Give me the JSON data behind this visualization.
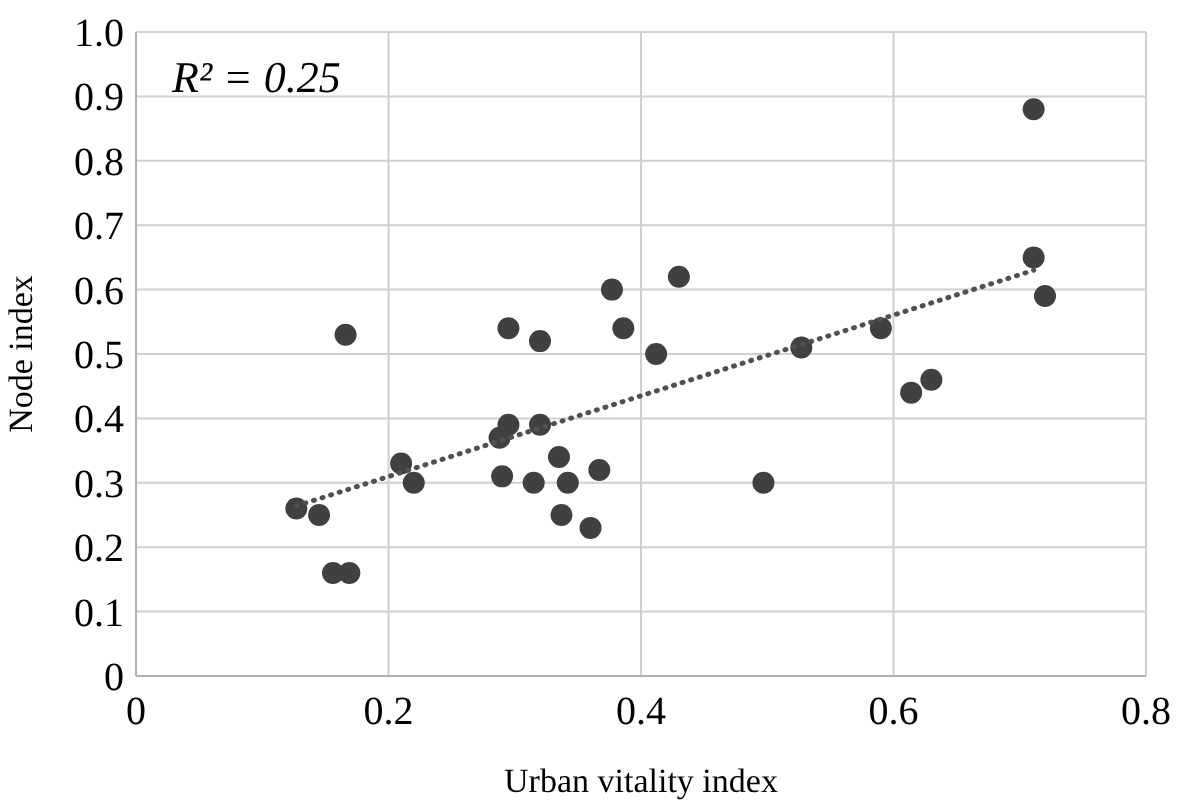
{
  "chart_data": {
    "type": "scatter",
    "xlabel": "Urban vitality index",
    "ylabel": "Node index",
    "annotations": [
      "R² = 0.25"
    ],
    "xlim": [
      0,
      0.8
    ],
    "xticks": [
      {
        "value": 0,
        "label": "0"
      },
      0.2,
      0.4,
      0.6,
      0.8
    ],
    "ylim": [
      0,
      1.0
    ],
    "yticks": [
      {
        "value": 0,
        "label": "0"
      },
      0.1,
      0.2,
      0.3,
      0.4,
      0.5,
      0.6,
      0.7,
      0.8,
      0.9,
      {
        "value": 1,
        "label": "1.0"
      }
    ],
    "grid": true,
    "marker": "circle",
    "series": [
      {
        "color": "#404040",
        "x": [
          0.127,
          0.145,
          0.166,
          0.156,
          0.169,
          0.21,
          0.22,
          0.29,
          0.288,
          0.295,
          0.295,
          0.315,
          0.32,
          0.32,
          0.335,
          0.337,
          0.342,
          0.36,
          0.367,
          0.377,
          0.386,
          0.412,
          0.43,
          0.497,
          0.527,
          0.59,
          0.614,
          0.63,
          0.711,
          0.72,
          0.711
        ],
        "values": [
          0.26,
          0.25,
          0.53,
          0.16,
          0.16,
          0.33,
          0.3,
          0.31,
          0.37,
          0.39,
          0.54,
          0.3,
          0.39,
          0.52,
          0.34,
          0.25,
          0.3,
          0.23,
          0.32,
          0.6,
          0.54,
          0.5,
          0.62,
          0.3,
          0.51,
          0.54,
          0.44,
          0.46,
          0.65,
          0.59,
          0.88
        ]
      },
      {
        "type": "line",
        "color": "#505050",
        "line_style": "dotted",
        "marker": "none",
        "x": [
          0.127,
          0.711
        ],
        "values": [
          0.264,
          0.63
        ]
      }
    ]
  }
}
